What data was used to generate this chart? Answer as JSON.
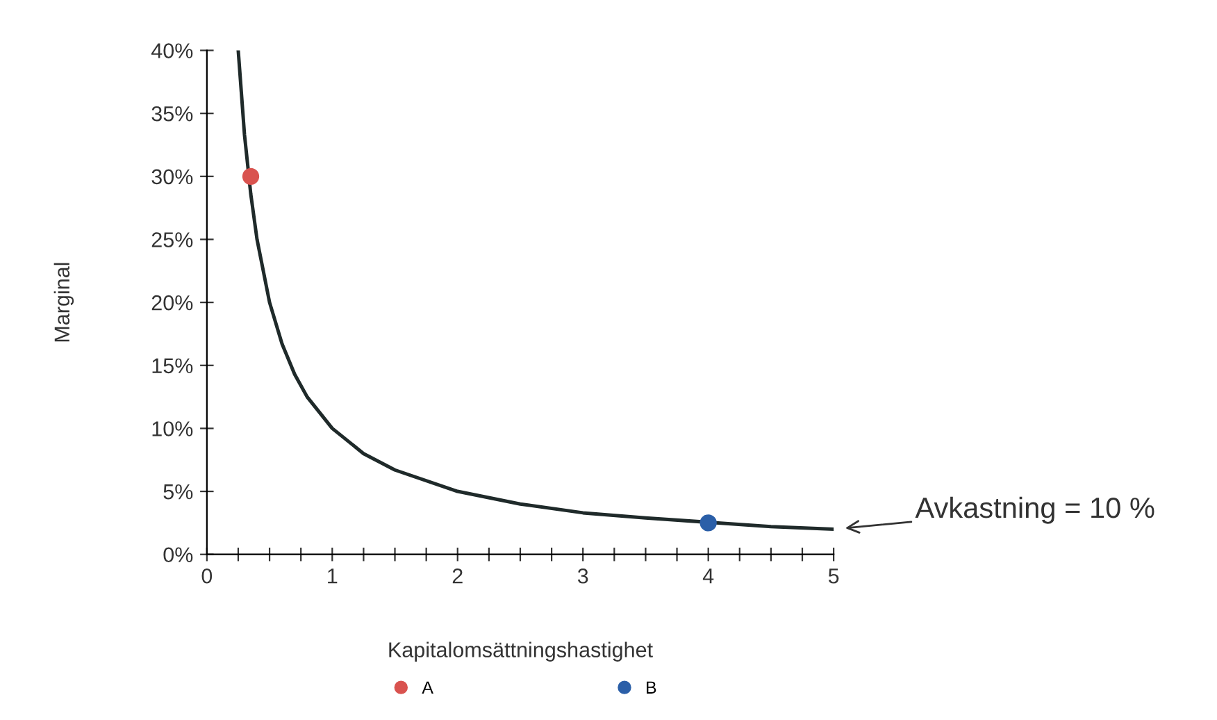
{
  "chart_data": {
    "type": "line",
    "xlabel": "Kapitalomsättningshastighet",
    "ylabel": "Marginal",
    "xlim": [
      0,
      5
    ],
    "ylim": [
      0,
      40
    ],
    "xticks": [
      0,
      {
        "value": 0.25,
        "label": null
      },
      {
        "value": 0.5,
        "label": null
      },
      {
        "value": 0.75,
        "label": null
      },
      1,
      {
        "value": 1.25,
        "label": null
      },
      {
        "value": 1.5,
        "label": null
      },
      {
        "value": 1.75,
        "label": null
      },
      2,
      {
        "value": 2.25,
        "label": null
      },
      {
        "value": 2.5,
        "label": null
      },
      {
        "value": 2.75,
        "label": null
      },
      3,
      {
        "value": 3.25,
        "label": null
      },
      {
        "value": 3.5,
        "label": null
      },
      {
        "value": 3.75,
        "label": null
      },
      4,
      {
        "value": 4.25,
        "label": null
      },
      {
        "value": 4.5,
        "label": null
      },
      {
        "value": 4.75,
        "label": null
      },
      5
    ],
    "yticks": [
      {
        "value": 0,
        "label": "0%"
      },
      {
        "value": 5,
        "label": "5%"
      },
      {
        "value": 10,
        "label": "10%"
      },
      {
        "value": 15,
        "label": "15%"
      },
      {
        "value": 20,
        "label": "20%"
      },
      {
        "value": 25,
        "label": "25%"
      },
      {
        "value": 30,
        "label": "30%"
      },
      {
        "value": 35,
        "label": "35%"
      },
      {
        "value": 40,
        "label": "40%"
      }
    ],
    "grid": false,
    "legend": "bottom",
    "marker": "none",
    "line_style": "solid",
    "series": [
      {
        "type": "line",
        "color": "#1f2a2a",
        "x": [
          0.25,
          0.3,
          0.35,
          0.4,
          0.5,
          0.6,
          0.7,
          0.8,
          1,
          1.25,
          1.5,
          2,
          2.5,
          3,
          3.5,
          4.5,
          5
        ],
        "values": [
          40,
          33.3,
          28.6,
          25,
          20,
          16.7,
          14.3,
          12.5,
          10,
          8,
          6.7,
          5,
          4,
          3.3,
          2.9,
          2.2,
          2
        ]
      },
      {
        "type": "scatter",
        "name": "A",
        "color": "#d9534f",
        "x": [
          0.35
        ],
        "values": [
          30
        ],
        "marker": "circle"
      },
      {
        "type": "scatter",
        "name": "B",
        "color": "#2b5fa8",
        "x": [
          4
        ],
        "values": [
          2.5
        ],
        "marker": "circle"
      }
    ],
    "annotations": [
      {
        "text": "Avkastning = 10 %",
        "x": 5,
        "y": 2
      }
    ]
  }
}
